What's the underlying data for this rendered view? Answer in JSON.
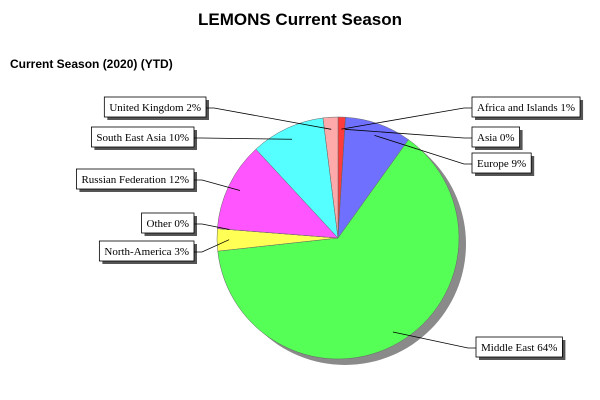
{
  "chart_data": {
    "type": "pie",
    "title": "LEMONS Current Season",
    "subtitle": "Current Season (2020) (YTD)",
    "categories": [
      "Africa and Islands",
      "Asia",
      "Europe",
      "Middle East",
      "North-America",
      "Other",
      "Russian Federation",
      "South East Asia",
      "United Kingdom"
    ],
    "values": [
      1,
      0,
      9,
      64,
      3,
      0,
      12,
      10,
      2
    ],
    "value_labels": [
      "1%",
      "0%",
      "9%",
      "64%",
      "3%",
      "0%",
      "12%",
      "10%",
      "2%"
    ],
    "colors": [
      "#ff3b3b",
      "#ff9933",
      "#7070ff",
      "#55ff55",
      "#ffff55",
      "#ffaa00",
      "#ff55ff",
      "#55ffff",
      "#ffaaaa"
    ]
  }
}
